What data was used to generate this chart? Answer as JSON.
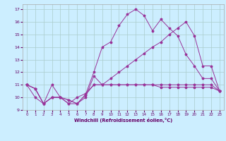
{
  "xlabel": "Windchill (Refroidissement éolien,°C)",
  "bg_color": "#cceeff",
  "grid_color": "#aacccc",
  "line_color": "#993399",
  "xlim": [
    -0.5,
    23.5
  ],
  "ylim": [
    9,
    17.4
  ],
  "yticks": [
    9,
    10,
    11,
    12,
    13,
    14,
    15,
    16,
    17
  ],
  "xticks": [
    0,
    1,
    2,
    3,
    4,
    5,
    6,
    7,
    8,
    9,
    10,
    11,
    12,
    13,
    14,
    15,
    16,
    17,
    18,
    19,
    20,
    21,
    22,
    23
  ],
  "series": [
    {
      "x": [
        0,
        1,
        2,
        3,
        4,
        5,
        6,
        7,
        8,
        9,
        10,
        11,
        12,
        13,
        14,
        15,
        16,
        17,
        18,
        19,
        20,
        21,
        22,
        23
      ],
      "y": [
        11.0,
        10.7,
        9.5,
        10.0,
        10.0,
        9.8,
        9.5,
        10.2,
        11.0,
        11.0,
        11.0,
        11.0,
        11.0,
        11.0,
        11.0,
        11.0,
        10.8,
        10.8,
        10.8,
        10.8,
        10.8,
        10.8,
        10.8,
        10.5
      ]
    },
    {
      "x": [
        0,
        1,
        2,
        3,
        4,
        5,
        6,
        7,
        8,
        9,
        10,
        11,
        12,
        13,
        14,
        15,
        16,
        17,
        18,
        19,
        20,
        21,
        22,
        23
      ],
      "y": [
        11.0,
        10.7,
        9.5,
        10.0,
        10.0,
        9.5,
        9.5,
        10.2,
        12.0,
        14.0,
        14.4,
        15.7,
        16.6,
        17.0,
        16.5,
        15.3,
        16.2,
        15.5,
        14.9,
        13.4,
        12.5,
        11.5,
        11.5,
        10.5
      ]
    },
    {
      "x": [
        0,
        1,
        2,
        3,
        4,
        5,
        6,
        7,
        8,
        9,
        10,
        11,
        12,
        13,
        14,
        15,
        16,
        17,
        18,
        19,
        20,
        21,
        22,
        23
      ],
      "y": [
        11.0,
        10.0,
        9.5,
        10.0,
        10.0,
        9.5,
        10.0,
        10.3,
        11.0,
        11.0,
        11.5,
        12.0,
        12.5,
        13.0,
        13.5,
        14.0,
        14.4,
        15.0,
        15.5,
        16.0,
        14.9,
        12.5,
        12.5,
        10.5
      ]
    },
    {
      "x": [
        0,
        1,
        2,
        3,
        4,
        5,
        6,
        7,
        8,
        9,
        10,
        11,
        12,
        13,
        14,
        15,
        16,
        17,
        18,
        19,
        20,
        21,
        22,
        23
      ],
      "y": [
        11.0,
        10.7,
        9.5,
        11.0,
        10.0,
        9.8,
        9.5,
        10.0,
        11.7,
        11.0,
        11.0,
        11.0,
        11.0,
        11.0,
        11.0,
        11.0,
        11.0,
        11.0,
        11.0,
        11.0,
        11.0,
        11.0,
        11.0,
        10.5
      ]
    }
  ]
}
